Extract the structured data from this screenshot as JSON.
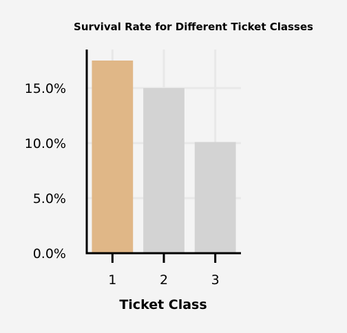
{
  "chart_data": {
    "type": "bar",
    "title": "Survival Rate for Different Ticket Classes",
    "xlabel": "Ticket Class",
    "ylabel": "",
    "categories": [
      "1",
      "2",
      "3"
    ],
    "values": [
      17.5,
      15.0,
      10.1
    ],
    "value_format": "percent",
    "ylim": [
      0,
      18.5
    ],
    "yticks": [
      0,
      5,
      10,
      15
    ],
    "ytick_labels": [
      "0.0%",
      "5.0%",
      "10.0%",
      "15.0%"
    ],
    "grid": true,
    "highlight_index": 0,
    "highlight_color": "#e0b787",
    "bar_color": "#d3d3d3",
    "grid_color": "#e8e8e8",
    "axis_color": "#000000",
    "background": "#f4f4f4"
  }
}
